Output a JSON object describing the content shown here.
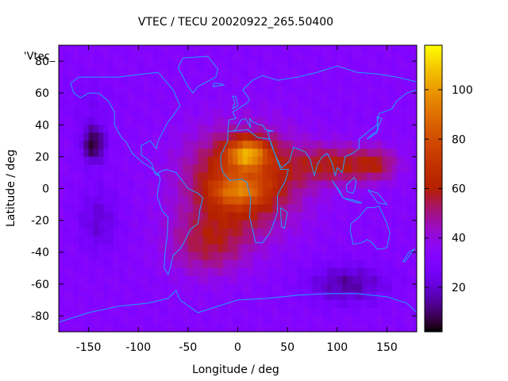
{
  "chart_data": {
    "type": "heatmap",
    "title": "VTEC / TECU 20020922_265.50400",
    "xlabel": "Longitude / deg",
    "ylabel": "Latitude / deg",
    "key_label": "'Vtec_",
    "xlim": [
      -180,
      180
    ],
    "ylim": [
      -90,
      90
    ],
    "xticks": [
      -150,
      -100,
      -50,
      0,
      50,
      100,
      150
    ],
    "yticks": [
      -80,
      -60,
      -40,
      -20,
      0,
      20,
      40,
      60,
      80
    ],
    "colorbar": {
      "range": [
        2,
        118
      ],
      "ticks": [
        20,
        40,
        60,
        80,
        100
      ],
      "palette": "gnuplot-pm3d"
    },
    "grid_resolution_deg": 5,
    "background_tecu": 33,
    "features": [
      {
        "name": "equatorial-anomaly-africa-north",
        "lon": 10,
        "lat": 22,
        "peak_tecu": 115
      },
      {
        "name": "equatorial-anomaly-africa-south",
        "lon": 0,
        "lat": -2,
        "peak_tecu": 92
      },
      {
        "name": "south-atlantic-enhancement",
        "lon": -30,
        "lat": -35,
        "peak_tecu": 60
      },
      {
        "name": "indian-ocean-band",
        "lon": 100,
        "lat": 15,
        "peak_tecu": 65
      },
      {
        "name": "pacific-minimum",
        "lon": -145,
        "lat": 28,
        "peak_tecu": 5
      },
      {
        "name": "south-pacific-minimum",
        "lon": -140,
        "lat": -20,
        "peak_tecu": 20
      },
      {
        "name": "antarctic-low",
        "lon": 110,
        "lat": -60,
        "peak_tecu": 15
      }
    ]
  }
}
